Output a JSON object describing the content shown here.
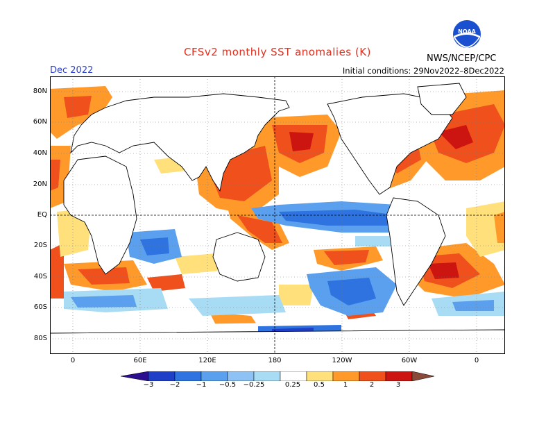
{
  "header": {
    "title": "CFSv2 monthly SST anomalies (K)",
    "month": "Dec 2022",
    "initial_conditions": "Initial conditions: 29Nov2022–8Dec2022",
    "agency": "NWS/NCEP/CPC",
    "logo_text": "NOAA"
  },
  "map": {
    "lat_labels": [
      "80N",
      "60N",
      "40N",
      "20N",
      "EQ",
      "20S",
      "40S",
      "60S",
      "80S"
    ],
    "lon_labels": [
      "0",
      "60E",
      "120E",
      "180",
      "120W",
      "60W",
      "0"
    ]
  },
  "colorbar": {
    "labels": [
      "−3",
      "−2",
      "−1",
      "−0.5",
      "−0.25",
      "0.25",
      "0.5",
      "1",
      "2",
      "3"
    ],
    "colors": [
      "#2b0f8f",
      "#1f3fc8",
      "#2e73e0",
      "#5aa0ee",
      "#a8dcf5",
      "#ffffff",
      "#ffe07a",
      "#ff9a2a",
      "#f0501c",
      "#cc1410",
      "#900c0c",
      "#8a4a3a"
    ]
  }
}
